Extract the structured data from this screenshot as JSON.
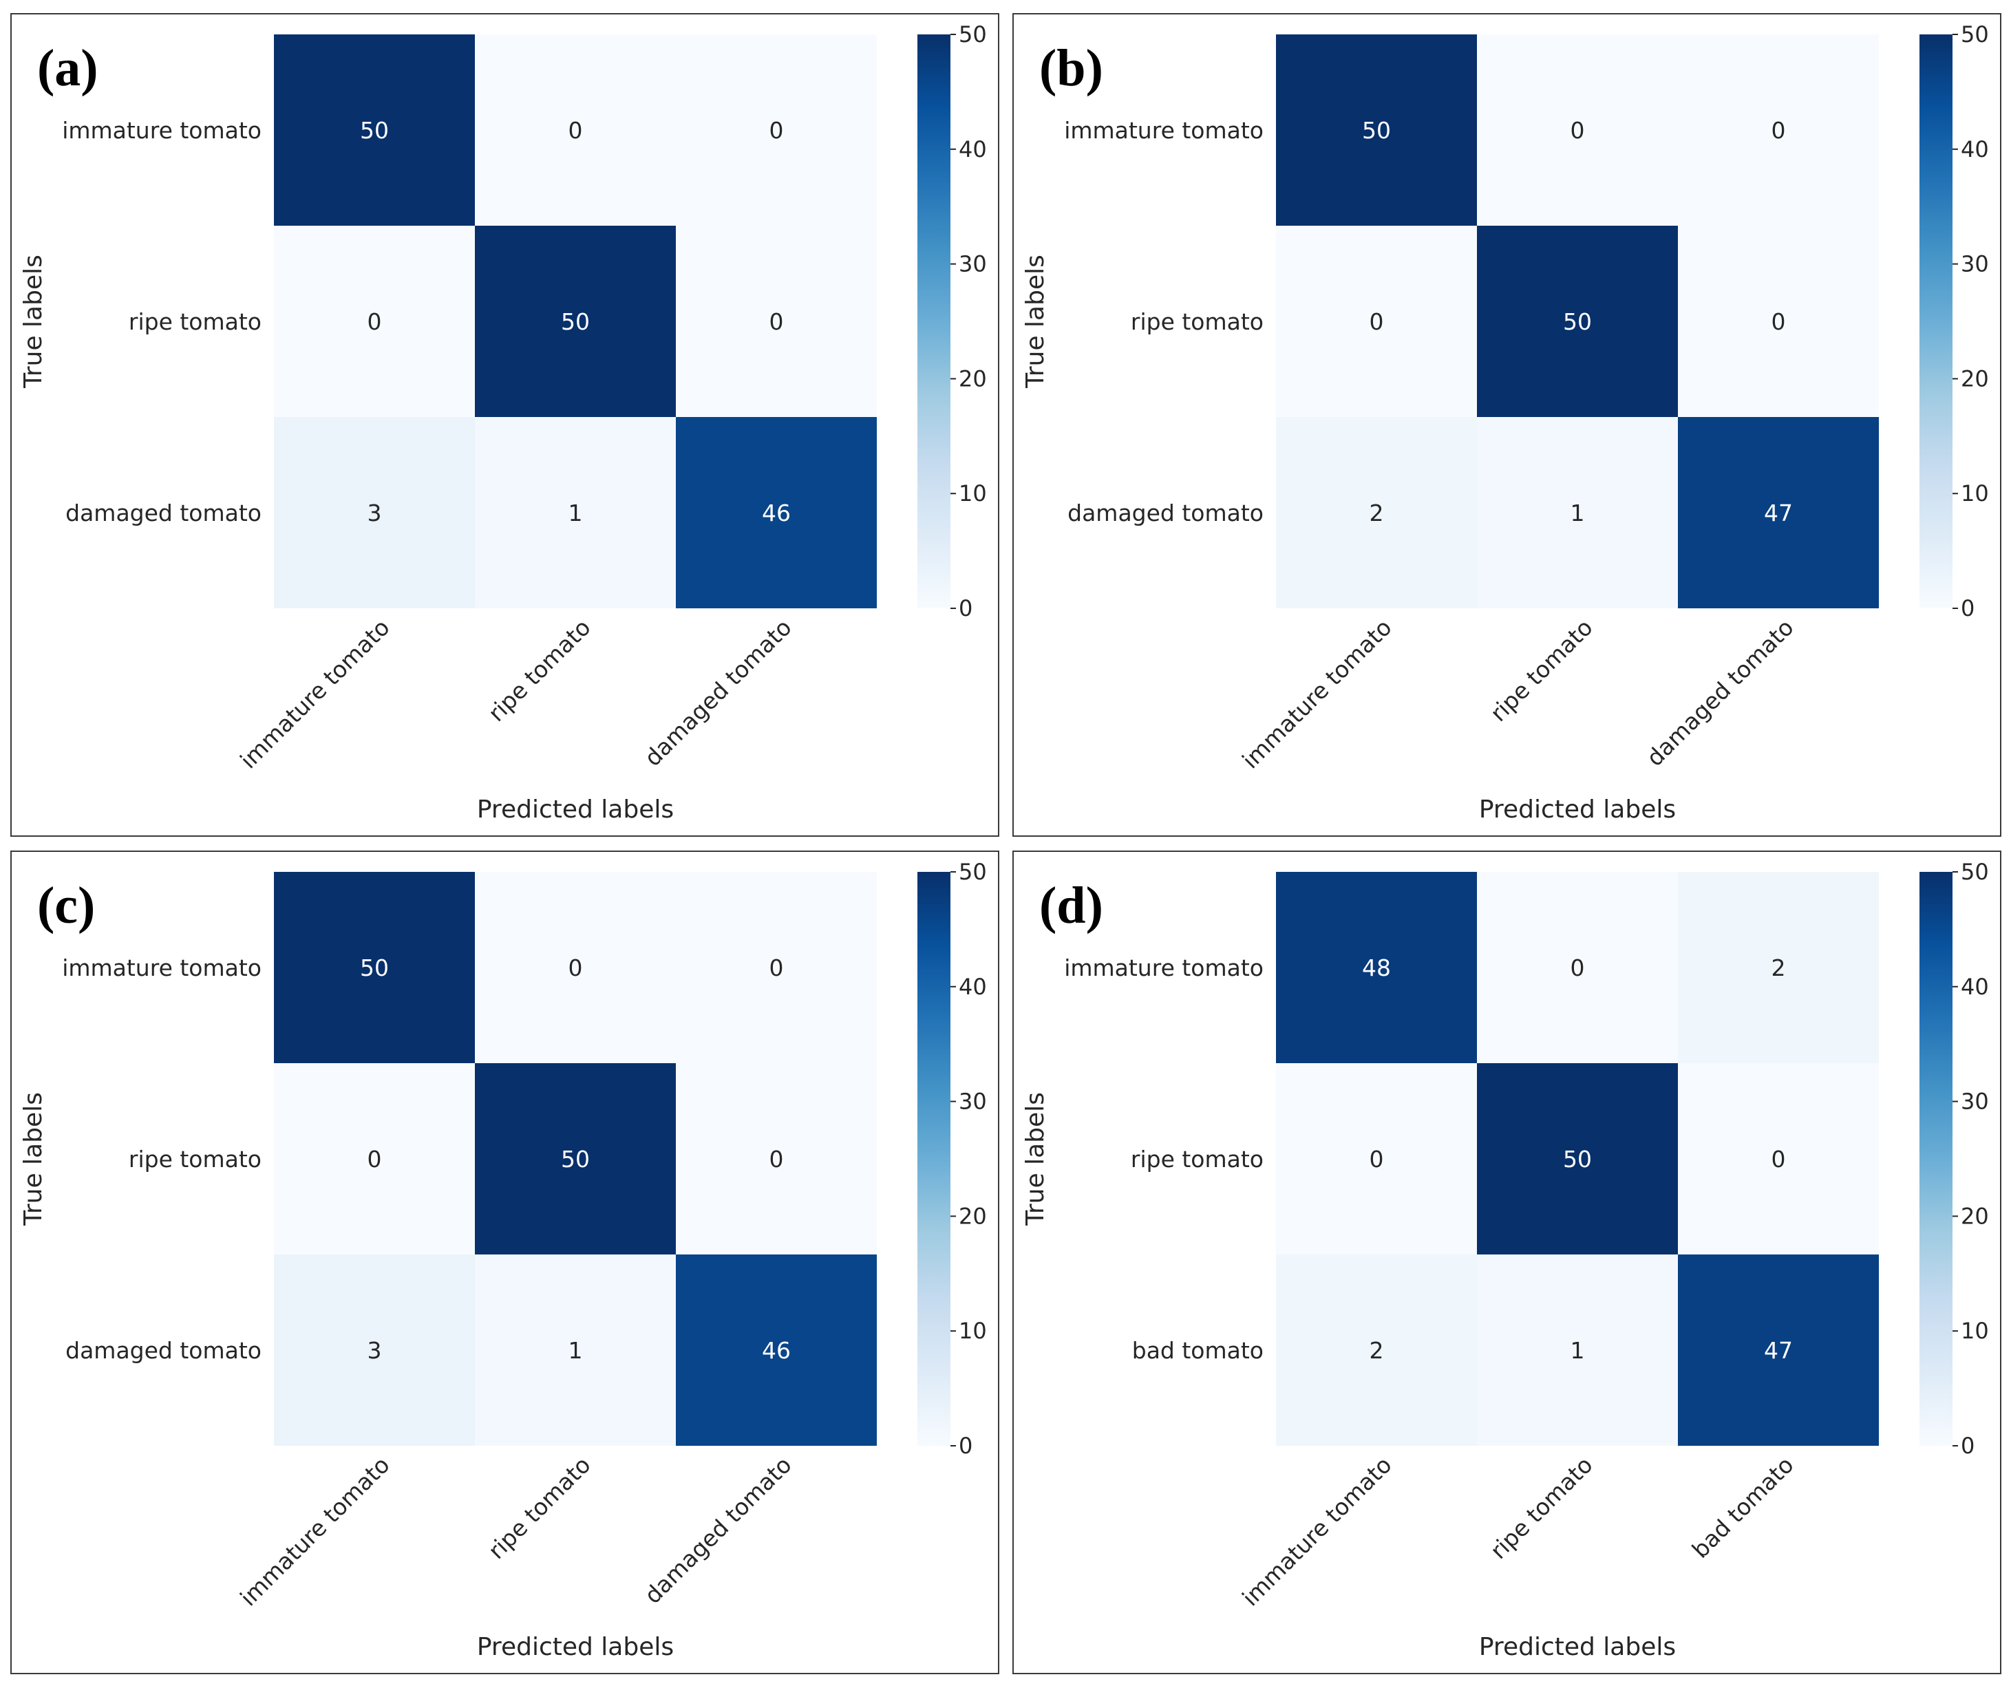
{
  "figure": {
    "colormap": "Blues",
    "colormap_stops": [
      "#f7fbff",
      "#deebf7",
      "#c6dbef",
      "#9ecae1",
      "#6baed6",
      "#4292c6",
      "#2171b5",
      "#08519c",
      "#08306b"
    ],
    "light_text_color": "#ffffff",
    "dark_text_color": "#262626",
    "frame_color": "#3a3a3a"
  },
  "chart_data": [
    {
      "type": "heatmap",
      "panel": "(a)",
      "ylabel": "True labels",
      "xlabel": "Predicted labels",
      "row_labels": [
        "immature tomato",
        "ripe tomato",
        "damaged tomato"
      ],
      "col_labels": [
        "immature tomato",
        "ripe tomato",
        "damaged tomato"
      ],
      "values": [
        [
          50,
          0,
          0
        ],
        [
          0,
          50,
          0
        ],
        [
          3,
          1,
          46
        ]
      ],
      "colorbar": {
        "vmin": 0,
        "vmax": 50,
        "ticks": [
          "0",
          "10",
          "20",
          "30",
          "40",
          "50"
        ]
      }
    },
    {
      "type": "heatmap",
      "panel": "(b)",
      "ylabel": "True labels",
      "xlabel": "Predicted labels",
      "row_labels": [
        "immature tomato",
        "ripe tomato",
        "damaged tomato"
      ],
      "col_labels": [
        "immature tomato",
        "ripe tomato",
        "damaged tomato"
      ],
      "values": [
        [
          50,
          0,
          0
        ],
        [
          0,
          50,
          0
        ],
        [
          2,
          1,
          47
        ]
      ],
      "colorbar": {
        "vmin": 0,
        "vmax": 50,
        "ticks": [
          "0",
          "10",
          "20",
          "30",
          "40",
          "50"
        ]
      }
    },
    {
      "type": "heatmap",
      "panel": "(c)",
      "ylabel": "True labels",
      "xlabel": "Predicted labels",
      "row_labels": [
        "immature tomato",
        "ripe tomato",
        "damaged tomato"
      ],
      "col_labels": [
        "immature tomato",
        "ripe tomato",
        "damaged tomato"
      ],
      "values": [
        [
          50,
          0,
          0
        ],
        [
          0,
          50,
          0
        ],
        [
          3,
          1,
          46
        ]
      ],
      "colorbar": {
        "vmin": 0,
        "vmax": 50,
        "ticks": [
          "0",
          "10",
          "20",
          "30",
          "40",
          "50"
        ]
      }
    },
    {
      "type": "heatmap",
      "panel": "(d)",
      "ylabel": "True labels",
      "xlabel": "Predicted labels",
      "row_labels": [
        "immature tomato",
        "ripe tomato",
        "bad tomato"
      ],
      "col_labels": [
        "immature tomato",
        "ripe tomato",
        "bad tomato"
      ],
      "values": [
        [
          48,
          0,
          2
        ],
        [
          0,
          50,
          0
        ],
        [
          2,
          1,
          47
        ]
      ],
      "colorbar": {
        "vmin": 0,
        "vmax": 50,
        "ticks": [
          "0",
          "10",
          "20",
          "30",
          "40",
          "50"
        ]
      }
    }
  ]
}
